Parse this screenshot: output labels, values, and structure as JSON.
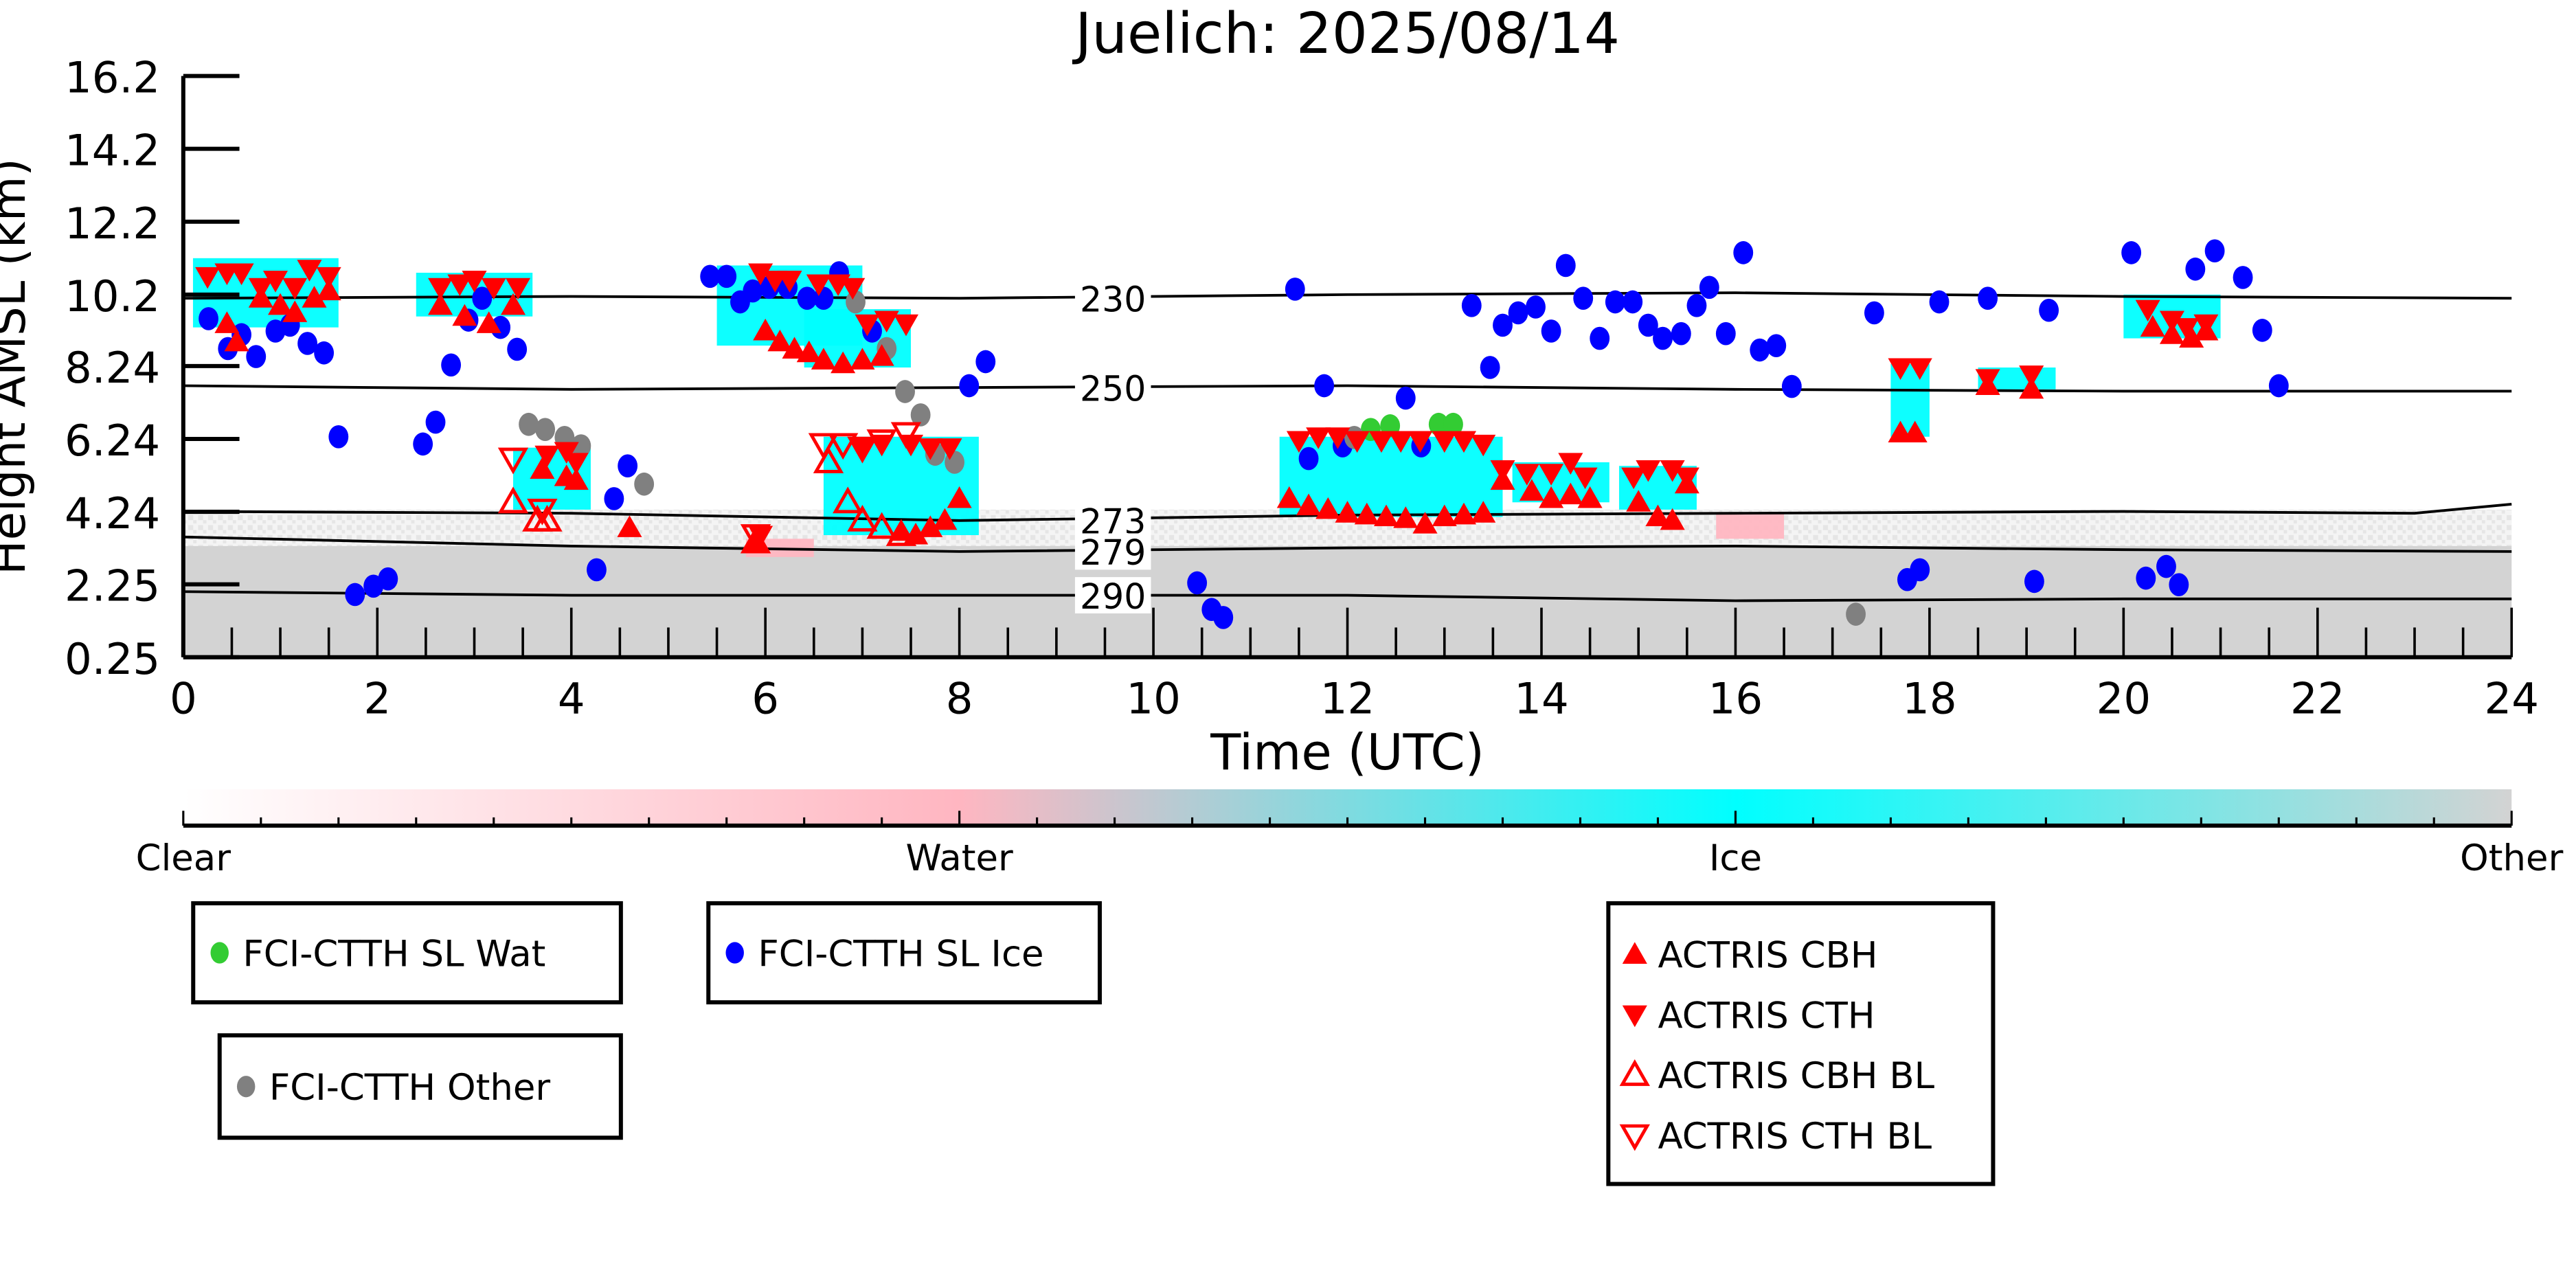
{
  "chart_data": {
    "type": "scatter",
    "title": "Juelich: 2025/08/14",
    "xlabel": "Time (UTC)",
    "ylabel": "Height AMSL (km)",
    "xlim": [
      0,
      24
    ],
    "ylim": [
      0.25,
      16.2
    ],
    "xticks": [
      0,
      2,
      4,
      6,
      8,
      10,
      12,
      14,
      16,
      18,
      20,
      22,
      24
    ],
    "yticks": [
      0.25,
      2.25,
      4.24,
      6.24,
      8.24,
      10.2,
      12.2,
      14.2,
      16.2
    ],
    "ytick_labels": [
      "0.25",
      "2.25",
      "4.24",
      "6.24",
      "8.24",
      "10.2",
      "12.2",
      "14.2",
      "16.2"
    ],
    "colors": {
      "clear": "#ffffff",
      "water": "#ffb6c1",
      "ice": "#00ffff",
      "other": "#d3d3d3",
      "wat_marker": "#33cc33",
      "ice_marker": "#0000ff",
      "other_marker": "#808080",
      "actris": "#ff0000"
    },
    "colorbar": {
      "labels": [
        "Clear",
        "Water",
        "Ice",
        "Other"
      ]
    },
    "cloud_regions": [
      {
        "class": "ice",
        "t": [
          0.1,
          1.6
        ],
        "h": [
          9.3,
          11.2
        ]
      },
      {
        "class": "ice",
        "t": [
          2.4,
          3.6
        ],
        "h": [
          9.6,
          10.8
        ]
      },
      {
        "class": "ice",
        "t": [
          3.4,
          4.2
        ],
        "h": [
          4.3,
          6.0
        ]
      },
      {
        "class": "ice",
        "t": [
          5.5,
          7.0
        ],
        "h": [
          8.8,
          11.0
        ]
      },
      {
        "class": "ice",
        "t": [
          6.4,
          7.5
        ],
        "h": [
          8.2,
          9.8
        ]
      },
      {
        "class": "ice",
        "t": [
          6.6,
          8.2
        ],
        "h": [
          3.6,
          6.3
        ]
      },
      {
        "class": "ice",
        "t": [
          11.3,
          13.6
        ],
        "h": [
          4.1,
          6.3
        ]
      },
      {
        "class": "ice",
        "t": [
          13.7,
          14.7
        ],
        "h": [
          4.5,
          5.6
        ]
      },
      {
        "class": "ice",
        "t": [
          14.8,
          15.6
        ],
        "h": [
          4.3,
          5.5
        ]
      },
      {
        "class": "ice",
        "t": [
          17.6,
          18.0
        ],
        "h": [
          6.3,
          8.3
        ]
      },
      {
        "class": "ice",
        "t": [
          18.5,
          19.3
        ],
        "h": [
          7.6,
          8.2
        ]
      },
      {
        "class": "ice",
        "t": [
          20.0,
          21.0
        ],
        "h": [
          9.0,
          10.2
        ]
      },
      {
        "class": "water",
        "t": [
          5.8,
          6.5
        ],
        "h": [
          3.0,
          3.5
        ]
      },
      {
        "class": "water",
        "t": [
          15.8,
          16.5
        ],
        "h": [
          3.5,
          4.2
        ]
      }
    ],
    "isotherms": [
      {
        "label": "230",
        "t": [
          0,
          4,
          8,
          12,
          16,
          20,
          24
        ],
        "h": [
          10.1,
          10.15,
          10.1,
          10.2,
          10.25,
          10.15,
          10.1
        ]
      },
      {
        "label": "250",
        "t": [
          0,
          4,
          8,
          12,
          16,
          20,
          24
        ],
        "h": [
          7.7,
          7.6,
          7.65,
          7.7,
          7.6,
          7.55,
          7.55
        ]
      },
      {
        "label": "273",
        "t": [
          0,
          4,
          8,
          12,
          16,
          20,
          23,
          24
        ],
        "h": [
          4.25,
          4.2,
          4.0,
          4.15,
          4.2,
          4.25,
          4.2,
          4.45
        ]
      },
      {
        "label": "279",
        "t": [
          0,
          4,
          8,
          12,
          16,
          20,
          24
        ],
        "h": [
          3.55,
          3.3,
          3.15,
          3.25,
          3.3,
          3.2,
          3.15
        ]
      },
      {
        "label": "290",
        "t": [
          0,
          4,
          8,
          12,
          16,
          20,
          24
        ],
        "h": [
          2.05,
          1.95,
          1.95,
          1.95,
          1.8,
          1.85,
          1.85
        ]
      }
    ],
    "series": [
      {
        "name": "FCI-CTTH SL Wat",
        "marker": "circle",
        "color": "#33cc33",
        "points": [
          [
            12.24,
            6.5
          ],
          [
            12.44,
            6.6
          ],
          [
            12.94,
            6.64
          ],
          [
            13.09,
            6.64
          ]
        ]
      },
      {
        "name": "FCI-CTTH SL Ice",
        "marker": "circle",
        "color": "#0000ff",
        "points": [
          [
            0.26,
            9.54
          ],
          [
            0.46,
            8.72
          ],
          [
            0.6,
            9.1
          ],
          [
            0.75,
            8.5
          ],
          [
            0.95,
            9.2
          ],
          [
            1.1,
            9.36
          ],
          [
            1.28,
            8.86
          ],
          [
            1.45,
            8.6
          ],
          [
            1.6,
            6.3
          ],
          [
            1.77,
            1.97
          ],
          [
            1.96,
            2.2
          ],
          [
            2.11,
            2.4
          ],
          [
            2.47,
            6.1
          ],
          [
            2.6,
            6.7
          ],
          [
            2.76,
            8.27
          ],
          [
            2.94,
            9.5
          ],
          [
            3.08,
            10.1
          ],
          [
            3.27,
            9.3
          ],
          [
            3.44,
            8.7
          ],
          [
            4.26,
            2.65
          ],
          [
            4.44,
            4.6
          ],
          [
            4.58,
            5.5
          ],
          [
            5.43,
            10.7
          ],
          [
            5.6,
            10.7
          ],
          [
            5.74,
            10.0
          ],
          [
            5.87,
            10.3
          ],
          [
            6.04,
            10.4
          ],
          [
            6.23,
            10.4
          ],
          [
            6.43,
            10.1
          ],
          [
            6.6,
            10.1
          ],
          [
            6.76,
            10.8
          ],
          [
            7.1,
            9.2
          ],
          [
            8.1,
            7.7
          ],
          [
            8.27,
            8.36
          ],
          [
            10.45,
            2.29
          ],
          [
            10.6,
            1.56
          ],
          [
            10.72,
            1.34
          ],
          [
            11.46,
            10.35
          ],
          [
            11.6,
            5.7
          ],
          [
            11.76,
            7.7
          ],
          [
            11.95,
            6.05
          ],
          [
            12.6,
            7.36
          ],
          [
            12.76,
            6.05
          ],
          [
            13.28,
            9.9
          ],
          [
            13.47,
            8.2
          ],
          [
            13.6,
            9.36
          ],
          [
            13.76,
            9.7
          ],
          [
            13.94,
            9.86
          ],
          [
            14.1,
            9.2
          ],
          [
            14.25,
            11.0
          ],
          [
            14.43,
            10.1
          ],
          [
            14.6,
            9.0
          ],
          [
            14.76,
            10.0
          ],
          [
            14.94,
            10.0
          ],
          [
            15.1,
            9.36
          ],
          [
            15.25,
            9.0
          ],
          [
            15.44,
            9.13
          ],
          [
            15.6,
            9.9
          ],
          [
            15.73,
            10.4
          ],
          [
            15.9,
            9.13
          ],
          [
            16.08,
            11.35
          ],
          [
            16.25,
            8.68
          ],
          [
            16.42,
            8.8
          ],
          [
            16.58,
            7.68
          ],
          [
            17.43,
            9.7
          ],
          [
            17.77,
            2.38
          ],
          [
            17.9,
            2.65
          ],
          [
            18.1,
            10.0
          ],
          [
            18.6,
            10.1
          ],
          [
            19.08,
            2.33
          ],
          [
            19.23,
            9.77
          ],
          [
            20.08,
            11.35
          ],
          [
            20.23,
            2.42
          ],
          [
            20.44,
            2.74
          ],
          [
            20.57,
            2.24
          ],
          [
            20.74,
            10.9
          ],
          [
            20.94,
            11.4
          ],
          [
            21.23,
            10.67
          ],
          [
            21.43,
            9.22
          ],
          [
            21.6,
            7.7
          ]
        ]
      },
      {
        "name": "FCI-CTTH Other",
        "marker": "circle",
        "color": "#808080",
        "points": [
          [
            3.56,
            6.64
          ],
          [
            3.73,
            6.5
          ],
          [
            3.93,
            6.28
          ],
          [
            4.1,
            6.05
          ],
          [
            4.75,
            5.0
          ],
          [
            6.93,
            10.0
          ],
          [
            7.25,
            8.72
          ],
          [
            7.44,
            7.54
          ],
          [
            7.6,
            6.9
          ],
          [
            7.75,
            5.82
          ],
          [
            7.95,
            5.6
          ],
          [
            12.07,
            6.28
          ],
          [
            17.24,
            1.43
          ]
        ]
      },
      {
        "name": "ACTRIS CBH",
        "marker": "triangle-up",
        "color": "#ff0000",
        "filled": true,
        "points": [
          [
            0.45,
            9.4
          ],
          [
            0.55,
            8.9
          ],
          [
            0.8,
            10.1
          ],
          [
            1.0,
            9.9
          ],
          [
            1.15,
            9.7
          ],
          [
            1.35,
            10.1
          ],
          [
            1.5,
            10.3
          ],
          [
            2.65,
            9.9
          ],
          [
            2.9,
            9.6
          ],
          [
            3.15,
            9.4
          ],
          [
            3.4,
            9.9
          ],
          [
            3.7,
            5.4
          ],
          [
            3.95,
            5.2
          ],
          [
            4.05,
            5.1
          ],
          [
            4.6,
            3.8
          ],
          [
            5.9,
            3.4
          ],
          [
            6.0,
            9.2
          ],
          [
            6.15,
            8.9
          ],
          [
            6.3,
            8.7
          ],
          [
            6.45,
            8.6
          ],
          [
            6.6,
            8.4
          ],
          [
            6.8,
            8.3
          ],
          [
            7.0,
            8.4
          ],
          [
            7.2,
            8.5
          ],
          [
            7.4,
            3.7
          ],
          [
            7.55,
            3.6
          ],
          [
            7.7,
            3.8
          ],
          [
            7.85,
            4.0
          ],
          [
            8.0,
            4.6
          ],
          [
            11.4,
            4.6
          ],
          [
            11.6,
            4.4
          ],
          [
            11.8,
            4.3
          ],
          [
            12.0,
            4.2
          ],
          [
            12.2,
            4.15
          ],
          [
            12.4,
            4.1
          ],
          [
            12.6,
            4.05
          ],
          [
            12.8,
            3.9
          ],
          [
            13.0,
            4.1
          ],
          [
            13.2,
            4.15
          ],
          [
            13.4,
            4.2
          ],
          [
            13.6,
            5.1
          ],
          [
            13.9,
            4.8
          ],
          [
            14.1,
            4.6
          ],
          [
            14.3,
            4.7
          ],
          [
            14.5,
            4.6
          ],
          [
            15.0,
            4.5
          ],
          [
            15.2,
            4.1
          ],
          [
            15.35,
            4.0
          ],
          [
            15.5,
            5.0
          ],
          [
            17.7,
            6.4
          ],
          [
            17.85,
            6.4
          ],
          [
            18.6,
            7.7
          ],
          [
            19.05,
            7.6
          ],
          [
            20.3,
            9.3
          ],
          [
            20.5,
            9.1
          ],
          [
            20.7,
            9.0
          ],
          [
            20.85,
            9.2
          ]
        ]
      },
      {
        "name": "ACTRIS CTH",
        "marker": "triangle-down",
        "color": "#ff0000",
        "filled": true,
        "points": [
          [
            0.25,
            10.7
          ],
          [
            0.45,
            10.8
          ],
          [
            0.6,
            10.8
          ],
          [
            0.8,
            10.4
          ],
          [
            0.95,
            10.6
          ],
          [
            1.15,
            10.4
          ],
          [
            1.3,
            10.9
          ],
          [
            1.5,
            10.7
          ],
          [
            2.65,
            10.4
          ],
          [
            2.85,
            10.5
          ],
          [
            3.0,
            10.6
          ],
          [
            3.2,
            10.4
          ],
          [
            3.45,
            10.4
          ],
          [
            3.75,
            5.8
          ],
          [
            3.95,
            5.9
          ],
          [
            4.05,
            5.6
          ],
          [
            5.95,
            3.6
          ],
          [
            5.95,
            10.8
          ],
          [
            6.1,
            10.6
          ],
          [
            6.25,
            10.6
          ],
          [
            6.55,
            10.5
          ],
          [
            6.75,
            10.5
          ],
          [
            6.9,
            10.4
          ],
          [
            7.05,
            9.4
          ],
          [
            7.25,
            9.5
          ],
          [
            7.45,
            9.4
          ],
          [
            7.0,
            6.0
          ],
          [
            7.2,
            6.1
          ],
          [
            7.5,
            6.1
          ],
          [
            7.7,
            6.0
          ],
          [
            7.9,
            6.0
          ],
          [
            11.5,
            6.2
          ],
          [
            11.7,
            6.3
          ],
          [
            11.9,
            6.3
          ],
          [
            12.1,
            6.2
          ],
          [
            12.35,
            6.2
          ],
          [
            12.55,
            6.2
          ],
          [
            12.75,
            6.2
          ],
          [
            13.0,
            6.2
          ],
          [
            13.2,
            6.2
          ],
          [
            13.4,
            6.1
          ],
          [
            13.6,
            5.4
          ],
          [
            13.85,
            5.3
          ],
          [
            14.1,
            5.3
          ],
          [
            14.3,
            5.6
          ],
          [
            14.45,
            5.2
          ],
          [
            14.95,
            5.2
          ],
          [
            15.1,
            5.4
          ],
          [
            15.35,
            5.4
          ],
          [
            15.5,
            5.2
          ],
          [
            17.7,
            8.2
          ],
          [
            17.9,
            8.2
          ],
          [
            18.6,
            7.9
          ],
          [
            19.05,
            8.0
          ],
          [
            20.25,
            9.8
          ],
          [
            20.5,
            9.5
          ],
          [
            20.65,
            9.3
          ],
          [
            20.85,
            9.4
          ]
        ]
      },
      {
        "name": "ACTRIS CBH BL",
        "marker": "triangle-up",
        "color": "#ff0000",
        "filled": false,
        "points": [
          [
            3.4,
            4.5
          ],
          [
            3.65,
            4.0
          ],
          [
            3.75,
            4.0
          ],
          [
            6.65,
            5.6
          ],
          [
            6.85,
            4.5
          ],
          [
            7.0,
            4.0
          ],
          [
            7.2,
            3.8
          ],
          [
            7.4,
            3.6
          ],
          [
            5.9,
            3.4
          ]
        ]
      },
      {
        "name": "ACTRIS CTH BL",
        "marker": "triangle-down",
        "color": "#ff0000",
        "filled": false,
        "points": [
          [
            3.4,
            5.7
          ],
          [
            3.7,
            4.3
          ],
          [
            6.6,
            6.1
          ],
          [
            6.8,
            6.1
          ],
          [
            7.0,
            6.0
          ],
          [
            7.2,
            6.2
          ],
          [
            7.45,
            6.4
          ],
          [
            5.9,
            3.6
          ]
        ]
      }
    ],
    "legends": [
      {
        "entries": [
          "FCI-CTTH SL Wat"
        ]
      },
      {
        "entries": [
          "FCI-CTTH SL Ice"
        ]
      },
      {
        "entries": [
          "FCI-CTTH Other"
        ]
      },
      {
        "entries": [
          "ACTRIS CBH",
          "ACTRIS CTH",
          "ACTRIS CBH BL",
          "ACTRIS CTH BL"
        ]
      }
    ]
  }
}
